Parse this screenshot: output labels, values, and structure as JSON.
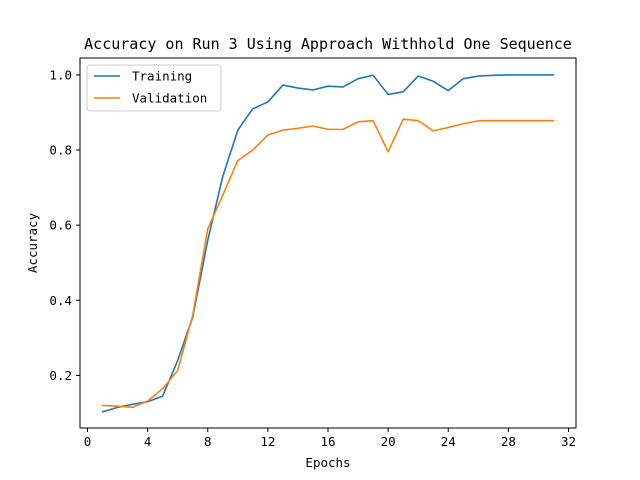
{
  "chart_data": {
    "type": "line",
    "title": "Accuracy on Run 3 Using Approach Withhold One Sequence",
    "xlabel": "Epochs",
    "ylabel": "Accuracy",
    "xlim": [
      -0.5,
      32.5
    ],
    "ylim": [
      0.06,
      1.045
    ],
    "xticks": [
      0,
      4,
      8,
      12,
      16,
      20,
      24,
      28,
      32
    ],
    "yticks": [
      0.2,
      0.4,
      0.6,
      0.8,
      1.0
    ],
    "ytick_labels": [
      "0.2",
      "0.4",
      "0.6",
      "0.8",
      "1.0"
    ],
    "grid": false,
    "legend_position": "top-left",
    "x": [
      1,
      2,
      3,
      4,
      5,
      6,
      7,
      8,
      9,
      10,
      11,
      12,
      13,
      14,
      15,
      16,
      17,
      18,
      19,
      20,
      21,
      22,
      23,
      24,
      25,
      26,
      27,
      28,
      29,
      30,
      31
    ],
    "series": [
      {
        "name": "Training",
        "color": "#1f77b4",
        "values": [
          0.103,
          0.115,
          0.123,
          0.13,
          0.145,
          0.24,
          0.355,
          0.56,
          0.73,
          0.853,
          0.91,
          0.928,
          0.973,
          0.965,
          0.96,
          0.97,
          0.968,
          0.99,
          0.999,
          0.948,
          0.955,
          0.997,
          0.983,
          0.958,
          0.99,
          0.997,
          0.999,
          1.0,
          1.0,
          1.0,
          1.0
        ]
      },
      {
        "name": "Validation",
        "color": "#ff7f0e",
        "values": [
          0.12,
          0.118,
          0.115,
          0.132,
          0.165,
          0.213,
          0.36,
          0.59,
          0.68,
          0.772,
          0.8,
          0.84,
          0.853,
          0.858,
          0.864,
          0.855,
          0.855,
          0.875,
          0.878,
          0.795,
          0.882,
          0.878,
          0.851,
          0.86,
          0.87,
          0.878,
          0.878,
          0.878,
          0.878,
          0.878,
          0.878
        ]
      }
    ]
  }
}
